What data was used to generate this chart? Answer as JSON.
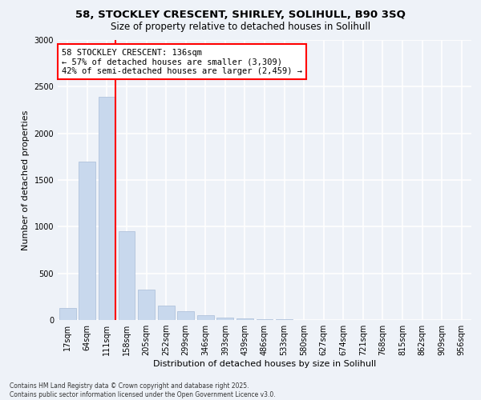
{
  "title_line1": "58, STOCKLEY CRESCENT, SHIRLEY, SOLIHULL, B90 3SQ",
  "title_line2": "Size of property relative to detached houses in Solihull",
  "xlabel": "Distribution of detached houses by size in Solihull",
  "ylabel": "Number of detached properties",
  "categories": [
    "17sqm",
    "64sqm",
    "111sqm",
    "158sqm",
    "205sqm",
    "252sqm",
    "299sqm",
    "346sqm",
    "393sqm",
    "439sqm",
    "486sqm",
    "533sqm",
    "580sqm",
    "627sqm",
    "674sqm",
    "721sqm",
    "768sqm",
    "815sqm",
    "862sqm",
    "909sqm",
    "956sqm"
  ],
  "values": [
    130,
    1700,
    2390,
    950,
    330,
    155,
    95,
    55,
    25,
    15,
    8,
    5,
    3,
    2,
    1,
    1,
    0,
    0,
    0,
    0,
    0
  ],
  "bar_color": "#c8d8ed",
  "bar_edge_color": "#a8bcd8",
  "vline_color": "red",
  "annotation_text": "58 STOCKLEY CRESCENT: 136sqm\n← 57% of detached houses are smaller (3,309)\n42% of semi-detached houses are larger (2,459) →",
  "annotation_box_color": "white",
  "annotation_box_edge_color": "red",
  "footer_line1": "Contains HM Land Registry data © Crown copyright and database right 2025.",
  "footer_line2": "Contains public sector information licensed under the Open Government Licence v3.0.",
  "ylim": [
    0,
    3000
  ],
  "bg_color": "#eef2f8",
  "grid_color": "white"
}
